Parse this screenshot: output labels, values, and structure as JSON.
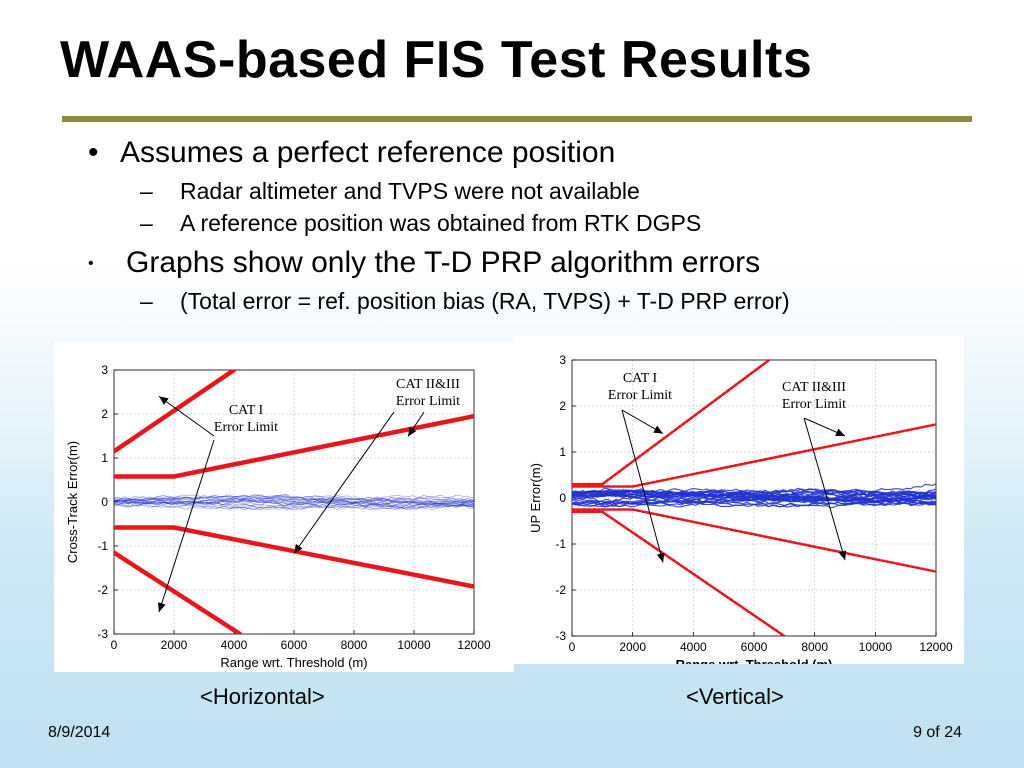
{
  "slide": {
    "title": "WAAS-based FIS Test Results",
    "bullets": [
      {
        "marker": "•",
        "text": "Assumes a perfect reference position",
        "sub": [
          {
            "marker": "–",
            "text": "Radar altimeter and TVPS were not available"
          },
          {
            "marker": "–",
            "text": "A reference position was obtained from RTK DGPS"
          }
        ]
      },
      {
        "marker": "•",
        "text": "Graphs show only the T-D PRP algorithm errors",
        "sub": [
          {
            "marker": "–",
            "text": "(Total error = ref. position bias (RA, TVPS) + T-D PRP error)"
          }
        ]
      }
    ],
    "captions": {
      "horizontal": "<Horizontal>",
      "vertical": "<Vertical>"
    },
    "footer": {
      "date": "8/9/2014",
      "page": "9 of 24"
    }
  },
  "colors": {
    "limit": "#e8161b",
    "trace": "#2233cc",
    "rule": "#8c8c3e"
  },
  "chart_data": [
    {
      "type": "line",
      "xlabel": "Range wrt. Threshold (m)",
      "ylabel": "Cross-Track Error(m)",
      "xlim": [
        0,
        12000
      ],
      "ylim": [
        -3,
        3
      ],
      "xticks": [
        0,
        2000,
        4000,
        6000,
        8000,
        10000,
        12000
      ],
      "yticks": [
        3,
        2,
        1,
        0,
        -1,
        -2,
        -3
      ],
      "grid": true,
      "annotations": [
        {
          "text": [
            "CAT I",
            "Error Limit"
          ],
          "targets": "CAT I limit lines"
        },
        {
          "text": [
            "CAT II&III",
            "Error Limit"
          ],
          "targets": "CAT II&III limit lines"
        }
      ],
      "series": [
        {
          "name": "CAT I upper",
          "x": [
            0,
            4000
          ],
          "y": [
            1.15,
            3.0
          ]
        },
        {
          "name": "CAT I lower",
          "x": [
            0,
            4200
          ],
          "y": [
            -1.15,
            -3.0
          ]
        },
        {
          "name": "CAT II&III upper",
          "x": [
            0,
            2000,
            12000
          ],
          "y": [
            0.58,
            0.58,
            1.95
          ]
        },
        {
          "name": "CAT II&III lower",
          "x": [
            0,
            2000,
            12000
          ],
          "y": [
            -0.58,
            -0.58,
            -1.92
          ]
        },
        {
          "name": "T-D PRP error",
          "x_range": [
            0,
            12000
          ],
          "y_spread": [
            -0.15,
            0.15
          ],
          "trace_count": 20
        }
      ]
    },
    {
      "type": "line",
      "xlabel": "Range wrt. Threshold (m)",
      "ylabel": "UP Error(m)",
      "xlim": [
        0,
        12000
      ],
      "ylim": [
        -3,
        3
      ],
      "xticks": [
        0,
        2000,
        4000,
        6000,
        8000,
        10000,
        12000
      ],
      "yticks": [
        3,
        2,
        1,
        0,
        -1,
        -2,
        -3
      ],
      "grid": true,
      "annotations": [
        {
          "text": [
            "CAT I",
            "Error Limit"
          ],
          "targets": "CAT I limit lines"
        },
        {
          "text": [
            "CAT II&III",
            "Error Limit"
          ],
          "targets": "CAT II&III limit lines"
        }
      ],
      "series": [
        {
          "name": "CAT I upper",
          "x": [
            0,
            1000,
            6500
          ],
          "y": [
            0.3,
            0.3,
            3.0
          ]
        },
        {
          "name": "CAT I lower",
          "x": [
            0,
            1000,
            7000
          ],
          "y": [
            -0.3,
            -0.3,
            -3.0
          ]
        },
        {
          "name": "CAT II&III upper",
          "x": [
            0,
            2000,
            12000
          ],
          "y": [
            0.25,
            0.25,
            1.6
          ]
        },
        {
          "name": "CAT II&III lower",
          "x": [
            0,
            2000,
            12000
          ],
          "y": [
            -0.25,
            -0.25,
            -1.6
          ]
        },
        {
          "name": "T-D PRP error",
          "x_range": [
            0,
            12000
          ],
          "y_spread": [
            -0.3,
            0.3
          ],
          "trace_count": 25
        }
      ]
    }
  ]
}
